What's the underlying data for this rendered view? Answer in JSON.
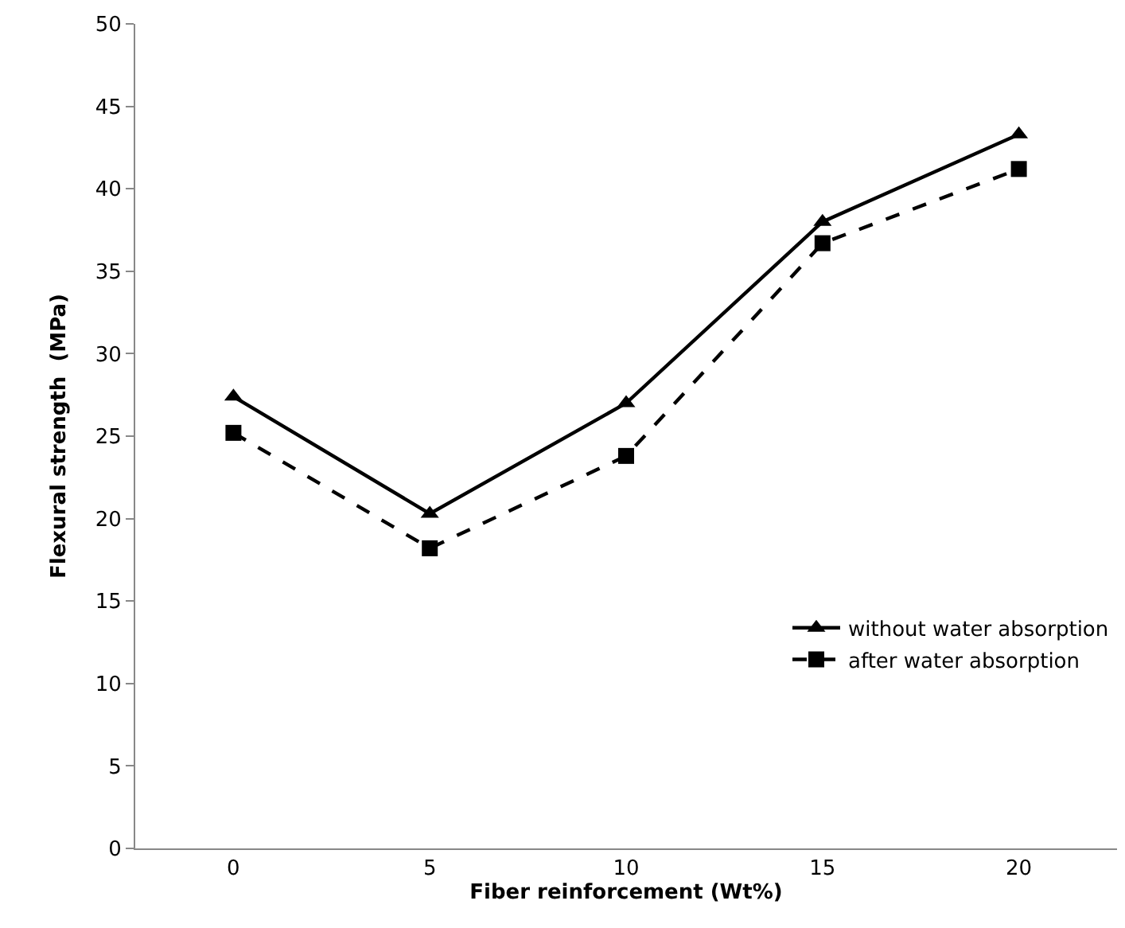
{
  "chart_data": {
    "type": "line",
    "xlabel": "Fiber reinforcement (Wt%)",
    "ylabel": "Flexural strength  (MPa)",
    "categories": [
      "0",
      "5",
      "10",
      "15",
      "20"
    ],
    "series": [
      {
        "name": "without water absorption",
        "color": "#000000",
        "marker": "triangle",
        "line_style": "solid",
        "values": [
          27.4,
          20.3,
          27.0,
          38.0,
          43.3
        ]
      },
      {
        "name": "after water absorption",
        "color": "#000000",
        "marker": "square",
        "line_style": "dashed",
        "values": [
          25.2,
          18.2,
          23.8,
          36.7,
          41.2
        ]
      }
    ],
    "ylim": [
      0,
      50
    ],
    "yticks": [
      0,
      5,
      10,
      15,
      20,
      25,
      30,
      35,
      40,
      45,
      50
    ],
    "legend": "bottom right"
  }
}
